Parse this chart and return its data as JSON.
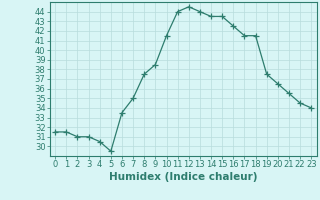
{
  "x": [
    0,
    1,
    2,
    3,
    4,
    5,
    6,
    7,
    8,
    9,
    10,
    11,
    12,
    13,
    14,
    15,
    16,
    17,
    18,
    19,
    20,
    21,
    22,
    23
  ],
  "y": [
    31.5,
    31.5,
    31.0,
    31.0,
    30.5,
    29.5,
    33.5,
    35.0,
    37.5,
    38.5,
    41.5,
    44.0,
    44.5,
    44.0,
    43.5,
    43.5,
    42.5,
    41.5,
    41.5,
    37.5,
    36.5,
    35.5,
    34.5,
    34.0
  ],
  "line_color": "#2e7d6e",
  "marker": "+",
  "marker_size": 4,
  "bg_color": "#d8f5f5",
  "grid_color": "#b8dcdc",
  "xlabel": "Humidex (Indice chaleur)",
  "ylim": [
    29.0,
    45.0
  ],
  "xlim": [
    -0.5,
    23.5
  ],
  "yticks": [
    30,
    31,
    32,
    33,
    34,
    35,
    36,
    37,
    38,
    39,
    40,
    41,
    42,
    43,
    44
  ],
  "xticks": [
    0,
    1,
    2,
    3,
    4,
    5,
    6,
    7,
    8,
    9,
    10,
    11,
    12,
    13,
    14,
    15,
    16,
    17,
    18,
    19,
    20,
    21,
    22,
    23
  ],
  "tick_label_fontsize": 6,
  "xlabel_fontsize": 7.5,
  "axis_color": "#2e7d6e",
  "tick_color": "#2e7d6e"
}
